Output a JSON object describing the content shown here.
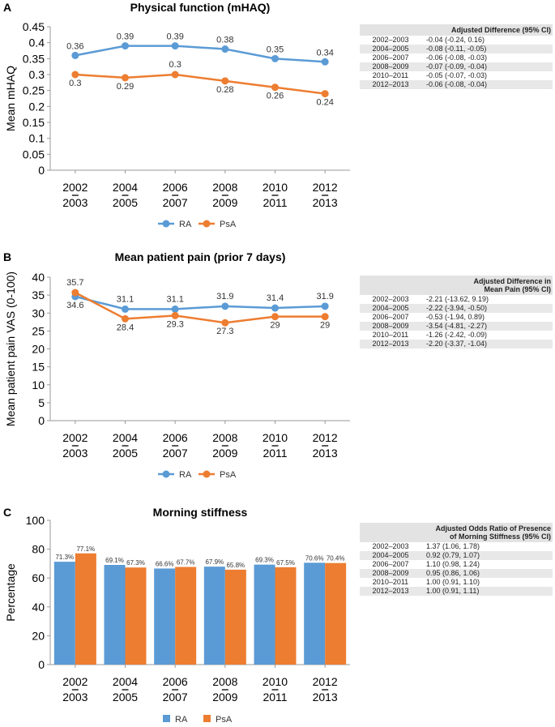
{
  "colors": {
    "ra": "#5b9bd5",
    "psa": "#ed7d31",
    "axis": "#999999",
    "table_shade": "#e8e8e8"
  },
  "chart_data": [
    {
      "panel": "A",
      "type": "line",
      "title": "Physical function (mHAQ)",
      "ylabel": "Mean mHAQ",
      "xlabel": "",
      "categories": [
        [
          "2002",
          "2003"
        ],
        [
          "2004",
          "2005"
        ],
        [
          "2006",
          "2007"
        ],
        [
          "2008",
          "2009"
        ],
        [
          "2010",
          "2011"
        ],
        [
          "2012",
          "2013"
        ]
      ],
      "ylim": [
        0,
        0.45
      ],
      "yticks": [
        "0",
        "0.05",
        "0.1",
        "0.15",
        "0.2",
        "0.25",
        "0.3",
        "0.35",
        "0.4",
        "0.45"
      ],
      "series": [
        {
          "name": "RA",
          "values": [
            0.36,
            0.39,
            0.39,
            0.38,
            0.35,
            0.34
          ],
          "labels": [
            "0.36",
            "0.39",
            "0.39",
            "0.38",
            "0.35",
            "0.34"
          ]
        },
        {
          "name": "PsA",
          "values": [
            0.3,
            0.29,
            0.3,
            0.28,
            0.26,
            0.24
          ],
          "labels": [
            "0.3",
            "0.29",
            "0.3",
            "0.28",
            "0.26",
            "0.24"
          ]
        }
      ],
      "legend": "bottom",
      "table": {
        "header": [
          "Adjusted Difference (95% CI)"
        ],
        "rows": [
          [
            "2002–2003",
            "-0.04 (-0.24, 0.16)"
          ],
          [
            "2004–2005",
            "-0.08 (-0.11, -0.05)"
          ],
          [
            "2006–2007",
            "-0.06 (-0.08, -0.03)"
          ],
          [
            "2008–2009",
            "-0.07 (-0.09, -0.04)"
          ],
          [
            "2010–2011",
            "-0.05 (-0.07, -0.03)"
          ],
          [
            "2012–2013",
            "-0.06 (-0.08, -0.04)"
          ]
        ]
      }
    },
    {
      "panel": "B",
      "type": "line",
      "title": "Mean patient pain (prior 7 days)",
      "ylabel": "Mean patient pain VAS (0-100)",
      "xlabel": "",
      "categories": [
        [
          "2002",
          "2003"
        ],
        [
          "2004",
          "2005"
        ],
        [
          "2006",
          "2007"
        ],
        [
          "2008",
          "2009"
        ],
        [
          "2010",
          "2011"
        ],
        [
          "2012",
          "2013"
        ]
      ],
      "ylim": [
        0,
        40
      ],
      "yticks": [
        "0",
        "5",
        "10",
        "15",
        "20",
        "25",
        "30",
        "35",
        "40"
      ],
      "series": [
        {
          "name": "RA",
          "values": [
            34.6,
            31.1,
            31.1,
            31.9,
            31.4,
            31.9
          ],
          "labels": [
            "34.6",
            "31.1",
            "31.1",
            "31.9",
            "31.4",
            "31.9"
          ]
        },
        {
          "name": "PsA",
          "values": [
            35.7,
            28.4,
            29.3,
            27.3,
            29,
            29
          ],
          "labels": [
            "35.7",
            "28.4",
            "29.3",
            "27.3",
            "29",
            "29"
          ]
        }
      ],
      "legend": "bottom",
      "table": {
        "header": [
          "Adjusted Difference in",
          "Mean Pain (95% CI)"
        ],
        "rows": [
          [
            "2002–2003",
            "-2.21 (-13.62, 9.19)"
          ],
          [
            "2004–2005",
            "-2.22 (-3.94, -0.50)"
          ],
          [
            "2006–2007",
            "-0.53 (-1.94, 0.89)"
          ],
          [
            "2008–2009",
            "-3.54 (-4.81, -2.27)"
          ],
          [
            "2010–2011",
            "-1.26 (-2.42, -0.09)"
          ],
          [
            "2012–2013",
            "-2.20 (-3.37, -1.04)"
          ]
        ]
      }
    },
    {
      "panel": "C",
      "type": "bar",
      "title": "Morning stiffness",
      "ylabel": "Percentage",
      "xlabel": "",
      "categories": [
        [
          "2002",
          "2003"
        ],
        [
          "2004",
          "2005"
        ],
        [
          "2006",
          "2007"
        ],
        [
          "2008",
          "2009"
        ],
        [
          "2010",
          "2011"
        ],
        [
          "2012",
          "2013"
        ]
      ],
      "ylim": [
        0,
        100
      ],
      "yticks": [
        "0",
        "20",
        "40",
        "60",
        "80",
        "100"
      ],
      "series": [
        {
          "name": "RA",
          "values": [
            71.3,
            69.1,
            66.6,
            67.9,
            69.3,
            70.6
          ],
          "labels": [
            "71.3%",
            "69.1%",
            "66.6%",
            "67.9%",
            "69.3%",
            "70.6%"
          ]
        },
        {
          "name": "PsA",
          "values": [
            77.1,
            67.3,
            67.7,
            65.8,
            67.5,
            70.4
          ],
          "labels": [
            "77.1%",
            "67.3%",
            "67.7%",
            "65.8%",
            "67.5%",
            "70.4%"
          ]
        }
      ],
      "legend": "bottom",
      "table": {
        "header": [
          "Adjusted Odds Ratio of Presence",
          "of Morning Stiffness (95% CI)"
        ],
        "rows": [
          [
            "2002–2003",
            "1.37 (1.06, 1.78)"
          ],
          [
            "2004–2005",
            "0.92 (0.79, 1.07)"
          ],
          [
            "2006–2007",
            "1.10 (0.98, 1.24)"
          ],
          [
            "2008–2009",
            "0.95 (0.86, 1.06)"
          ],
          [
            "2010–2011",
            "1.00 (0.91, 1.10)"
          ],
          [
            "2012–2013",
            "1.00 (0.91, 1.11)"
          ]
        ]
      }
    }
  ]
}
